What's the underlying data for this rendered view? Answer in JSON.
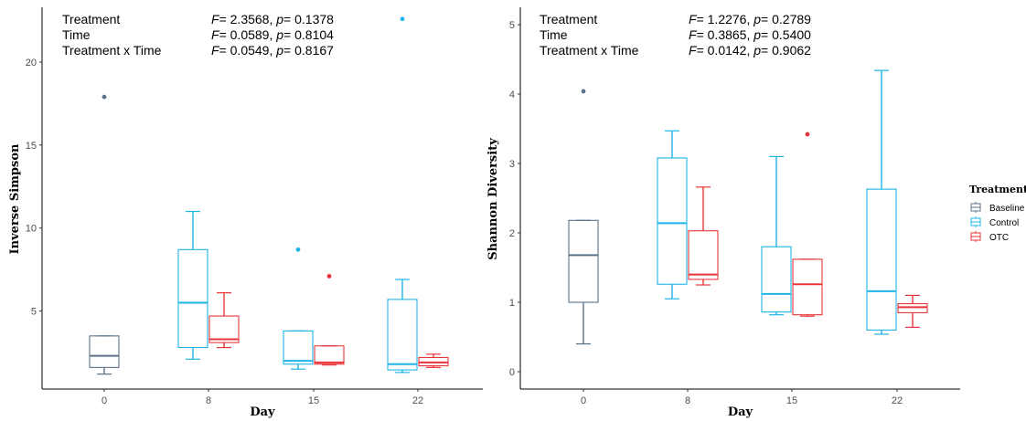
{
  "colors": {
    "Baseline": "#5a7289",
    "Control": "#1eb4e6",
    "OTC": "#e8353a"
  },
  "legend": {
    "title": "Treatment",
    "items": [
      "Baseline",
      "Control",
      "OTC"
    ]
  },
  "chart_data": [
    {
      "type": "box",
      "xlabel": "Day",
      "ylabel": "Inverse Simpson",
      "categories": [
        "0",
        "8",
        "15",
        "22"
      ],
      "yticks": [
        5,
        10,
        15,
        20
      ],
      "ylim": [
        0.3,
        23.3
      ],
      "annotations": [
        {
          "term": "Treatment",
          "F": "2.3568",
          "p": "0.1378"
        },
        {
          "term": "Time",
          "F": "0.0589",
          "p": "0.8104"
        },
        {
          "term": "Treatment x Time",
          "F": "0.0549",
          "p": "0.8167"
        }
      ],
      "boxes": [
        {
          "day": "0",
          "group": "Baseline",
          "min": 1.2,
          "q1": 1.6,
          "median": 2.3,
          "q3": 3.5,
          "max": 3.5,
          "outliers": [
            17.9
          ]
        },
        {
          "day": "8",
          "group": "Control",
          "min": 2.1,
          "q1": 2.8,
          "median": 5.5,
          "q3": 8.7,
          "max": 11.0,
          "outliers": []
        },
        {
          "day": "8",
          "group": "OTC",
          "min": 2.8,
          "q1": 3.1,
          "median": 3.3,
          "q3": 4.7,
          "max": 6.1,
          "outliers": []
        },
        {
          "day": "15",
          "group": "Control",
          "min": 1.5,
          "q1": 1.8,
          "median": 2.0,
          "q3": 3.8,
          "max": 3.8,
          "outliers": [
            8.7
          ]
        },
        {
          "day": "15",
          "group": "OTC",
          "min": 1.75,
          "q1": 1.8,
          "median": 1.9,
          "q3": 2.9,
          "max": 2.9,
          "outliers": [
            7.1
          ]
        },
        {
          "day": "22",
          "group": "Control",
          "min": 1.3,
          "q1": 1.45,
          "median": 1.8,
          "q3": 5.7,
          "max": 6.9,
          "outliers": [
            22.6
          ]
        },
        {
          "day": "22",
          "group": "OTC",
          "min": 1.6,
          "q1": 1.7,
          "median": 1.9,
          "q3": 2.2,
          "max": 2.4,
          "outliers": []
        }
      ]
    },
    {
      "type": "box",
      "xlabel": "Day",
      "ylabel": "Shannon Diversity",
      "categories": [
        "0",
        "8",
        "15",
        "22"
      ],
      "yticks": [
        0,
        1,
        2,
        3,
        4,
        5
      ],
      "ylim": [
        -0.25,
        5.25
      ],
      "annotations": [
        {
          "term": "Treatment",
          "F": "1.2276",
          "p": "0.2789"
        },
        {
          "term": "Time",
          "F": "0.3865",
          "p": "0.5400"
        },
        {
          "term": "Treatment x Time",
          "F": "0.0142",
          "p": "0.9062"
        }
      ],
      "boxes": [
        {
          "day": "0",
          "group": "Baseline",
          "min": 0.4,
          "q1": 1.0,
          "median": 1.68,
          "q3": 2.18,
          "max": 2.18,
          "outliers": [
            4.04
          ]
        },
        {
          "day": "8",
          "group": "Control",
          "min": 1.05,
          "q1": 1.26,
          "median": 2.14,
          "q3": 3.08,
          "max": 3.47,
          "outliers": []
        },
        {
          "day": "8",
          "group": "OTC",
          "min": 1.25,
          "q1": 1.33,
          "median": 1.4,
          "q3": 2.03,
          "max": 2.66,
          "outliers": []
        },
        {
          "day": "15",
          "group": "Control",
          "min": 0.82,
          "q1": 0.86,
          "median": 1.12,
          "q3": 1.8,
          "max": 3.1,
          "outliers": []
        },
        {
          "day": "15",
          "group": "OTC",
          "min": 0.8,
          "q1": 0.82,
          "median": 1.26,
          "q3": 1.62,
          "max": 1.62,
          "outliers": [
            3.42
          ]
        },
        {
          "day": "22",
          "group": "Control",
          "min": 0.54,
          "q1": 0.6,
          "median": 1.16,
          "q3": 2.63,
          "max": 4.34,
          "outliers": []
        },
        {
          "day": "22",
          "group": "OTC",
          "min": 0.64,
          "q1": 0.85,
          "median": 0.93,
          "q3": 0.98,
          "max": 1.1,
          "outliers": []
        }
      ]
    }
  ]
}
